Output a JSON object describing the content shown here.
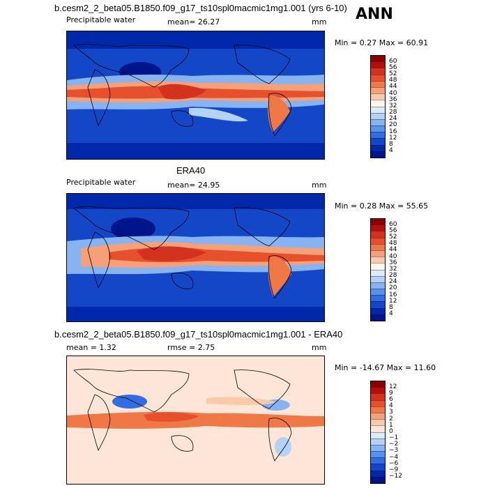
{
  "season": "ANN",
  "panels": [
    {
      "id": "model",
      "title": "b.cesm2_2_beta05.B1850.f09_g17_ts10spl0macmic1mg1.001 (yrs 6-10)",
      "subtitle_left": "Precipitable water",
      "stat_text": "mean=  26.27",
      "units": "mm",
      "minmax": "Min =   0.27 Max =  60.91",
      "levels": [
        "60",
        "56",
        "52",
        "48",
        "44",
        "40",
        "36",
        "32",
        "28",
        "24",
        "20",
        "16",
        "12",
        "8",
        "4"
      ],
      "colors": [
        "#8b0000",
        "#b40f0f",
        "#d2321e",
        "#e6502d",
        "#f07846",
        "#f5a078",
        "#fac8aa",
        "#fff5eb",
        "#dcebfa",
        "#b4d2f5",
        "#87b4f0",
        "#5a91eb",
        "#326ee1",
        "#1446c8",
        "#0028aa",
        "#00148c"
      ]
    },
    {
      "id": "obs",
      "title": "ERA40",
      "subtitle_left": "Precipitable water",
      "stat_text": "mean=  24.95",
      "units": "mm",
      "minmax": "Min =   0.28 Max =  55.65",
      "levels": [
        "60",
        "56",
        "52",
        "48",
        "44",
        "40",
        "36",
        "32",
        "28",
        "24",
        "20",
        "16",
        "12",
        "8",
        "4"
      ],
      "colors": [
        "#8b0000",
        "#b40f0f",
        "#d2321e",
        "#e6502d",
        "#f07846",
        "#f5a078",
        "#fac8aa",
        "#fff5eb",
        "#dcebfa",
        "#b4d2f5",
        "#87b4f0",
        "#5a91eb",
        "#326ee1",
        "#1446c8",
        "#0028aa",
        "#00148c"
      ]
    },
    {
      "id": "diff",
      "title": "b.cesm2_2_beta05.B1850.f09_g17_ts10spl0macmic1mg1.001 - ERA40",
      "subtitle_left": "mean =    1.32",
      "stat_text": "rmse =    2.75",
      "units": "mm",
      "minmax": "Min = -14.67 Max =  11.60",
      "levels": [
        "12",
        "9",
        "6",
        "4",
        "3",
        "2",
        "1",
        "0",
        "−1",
        "−2",
        "−3",
        "−4",
        "−6",
        "−9",
        "−12"
      ],
      "colors": [
        "#8b0000",
        "#b40f0f",
        "#d2321e",
        "#e6502d",
        "#f07846",
        "#f5a078",
        "#fac8aa",
        "#fde6d8",
        "#dcebfa",
        "#b4d2f5",
        "#87b4f0",
        "#5a91eb",
        "#326ee1",
        "#1446c8",
        "#0028aa",
        "#00148c"
      ]
    }
  ]
}
